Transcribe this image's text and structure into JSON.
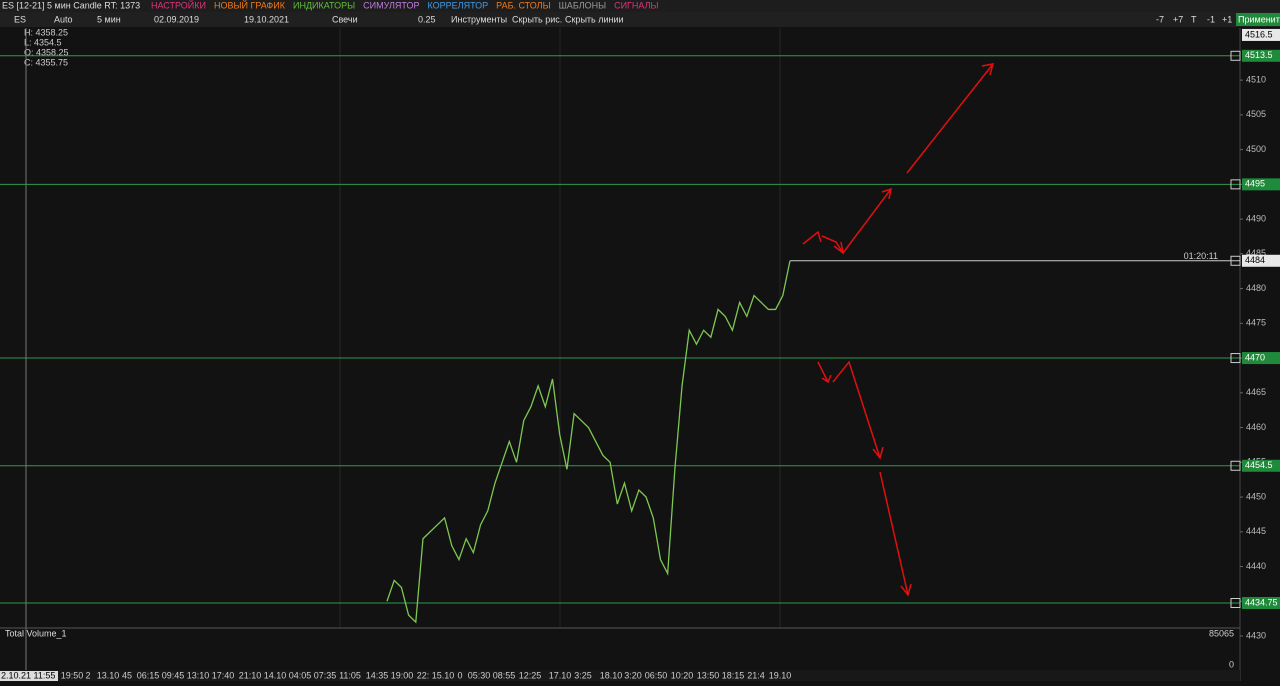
{
  "toolbar": {
    "title": "ES [12-21] 5 мин Candle RT: 1373",
    "menu": [
      {
        "label": "НАСТРОЙКИ",
        "color": "#e0337f"
      },
      {
        "label": "НОВЫЙ ГРАФИК",
        "color": "#f07a1a"
      },
      {
        "label": "ИНДИКАТОРЫ",
        "color": "#5fbf3a"
      },
      {
        "label": "СИМУЛЯТОР",
        "color": "#c27ce0"
      },
      {
        "label": "КОРРЕЛЯТОР",
        "color": "#3f9be6"
      },
      {
        "label": "РАБ. СТОЛЫ",
        "color": "#f07a1a"
      },
      {
        "label": "ШАБЛОНЫ",
        "color": "#9a9a9a"
      },
      {
        "label": "СИГНАЛЫ",
        "color": "#e0337f"
      }
    ]
  },
  "controls": {
    "symbol": "ES",
    "scale": "Auto",
    "timeframe": "5 мин",
    "date_from": "02.09.2019",
    "date_to": "19.10.2021",
    "chart_style": "Свечи",
    "step": "0.25",
    "buttons": [
      "Инструменты",
      "Скрыть рис.",
      "Скрыть линии"
    ],
    "shift_buttons": [
      "-7",
      "+7",
      "T",
      "-1",
      "+1"
    ],
    "apply": "Применить"
  },
  "ohlc": [
    "H: 4358.25",
    "L: 4354.5",
    "O: 4358.25",
    "C: 4355.75"
  ],
  "chart_data": {
    "type": "line",
    "color": "#7ec850",
    "ylim": [
      4430,
      4517.5
    ],
    "yticks": [
      4430,
      4435,
      4440,
      4445,
      4450,
      4455,
      4460,
      4465,
      4470,
      4475,
      4480,
      4485,
      4490,
      4495,
      4500,
      4505,
      4510
    ],
    "values": [
      4435,
      4438,
      4437,
      4433,
      4432,
      4444,
      4445,
      4446,
      4447,
      4443,
      4441,
      4444,
      4442,
      4446,
      4448,
      4452,
      4455,
      4458,
      4455,
      4461,
      4463,
      4466,
      4463,
      4467,
      4459,
      4454,
      4462,
      4461,
      4460,
      4458,
      4456,
      4455,
      4449,
      4452,
      4448,
      4451,
      4450,
      4447,
      4441,
      4439,
      4454,
      4466,
      4474,
      4472,
      4474,
      4473,
      4477,
      4476,
      4474,
      4478,
      4476,
      4479,
      4478,
      4477,
      4477,
      4479,
      4484
    ],
    "levels": [
      4513.5,
      4495,
      4470,
      4454.5,
      4434.75
    ],
    "high_marker": 4516.5,
    "current_price": 4484,
    "timer": "01:20:11",
    "x_start_label": "2.10.21 11:55",
    "x_tick_labels": [
      "19:50",
      "2",
      "13.10",
      "45",
      "06:15",
      "09:45",
      "13:10",
      "17:40",
      "21:10",
      "14.10",
      "04:05",
      "07:35",
      "11:05",
      "14:35",
      "19:00",
      "22:",
      "15.10",
      "0",
      "05:30",
      "08:55",
      "12:25",
      "17.10",
      "3:25",
      "18.10",
      "3:20",
      "06:50",
      "10:20",
      "13:50",
      "18:15",
      "21:4",
      "19.10"
    ],
    "volume_title": "Total Volume_1",
    "volume_ticks": [
      0,
      85065
    ]
  }
}
